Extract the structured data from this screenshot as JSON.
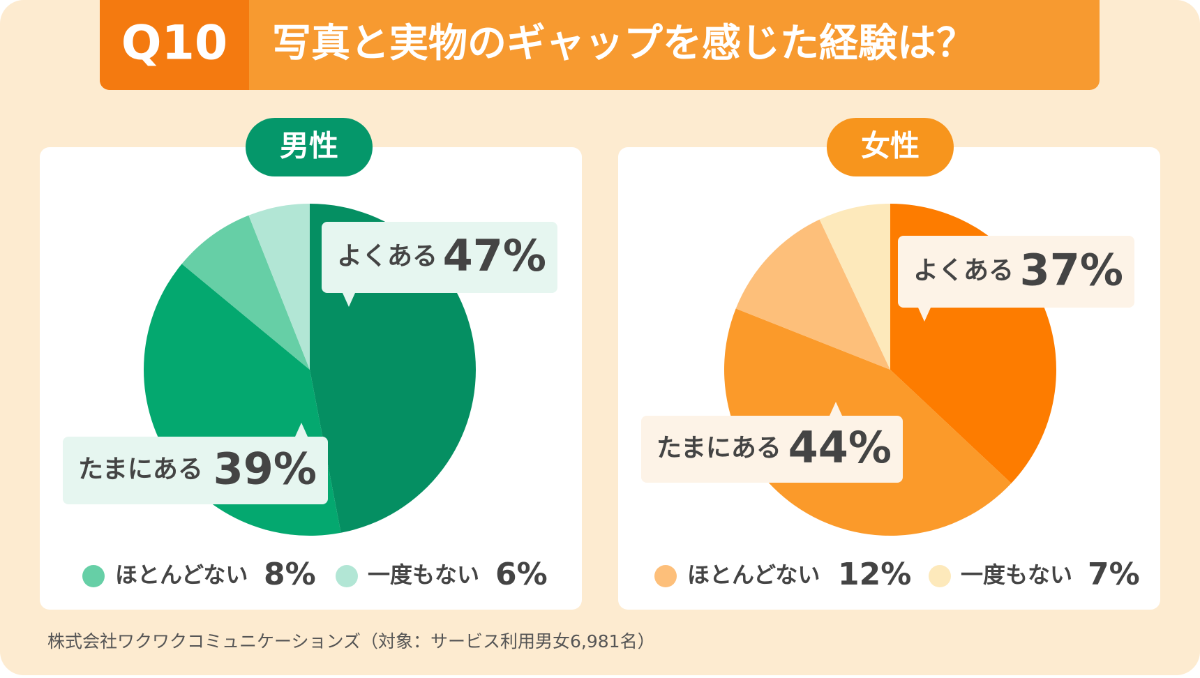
{
  "header": {
    "number": "Q10",
    "title": "写真と実物のギャップを感じた経験は？"
  },
  "chart_data": [
    {
      "type": "pie",
      "title": "男性",
      "categories": [
        "よくある",
        "たまにある",
        "ほとんどない",
        "一度もない"
      ],
      "values": [
        47,
        39,
        8,
        6
      ],
      "value_labels": [
        "47%",
        "39%",
        "8%",
        "6%"
      ],
      "colors": [
        "#058f62",
        "#04a86f",
        "#66cfa6",
        "#b2e6d5"
      ],
      "title_color": "#05976a"
    },
    {
      "type": "pie",
      "title": "女性",
      "categories": [
        "よくある",
        "たまにある",
        "ほとんどない",
        "一度もない"
      ],
      "values": [
        37,
        44,
        12,
        7
      ],
      "value_labels": [
        "37%",
        "44%",
        "12%",
        "7%"
      ],
      "colors": [
        "#fd7c00",
        "#fb9a2a",
        "#fdbf7a",
        "#fde9bb"
      ],
      "title_color": "#f7951d"
    }
  ],
  "footer": {
    "source": "株式会社ワクワクコミュニケーションズ（対象：サービス利用男女6,981名）"
  }
}
